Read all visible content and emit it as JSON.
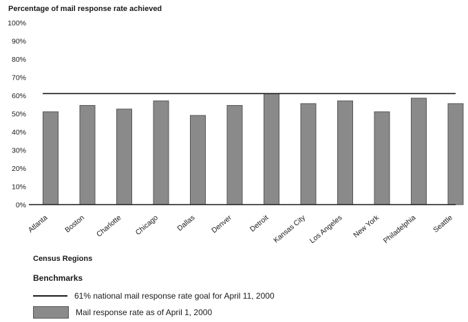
{
  "colors": {
    "bar": "#8a8a8a",
    "bar_edge": "#555555",
    "goal_line": "#1a1a1a",
    "axis": "#1a1a1a"
  },
  "chart_data": {
    "type": "bar",
    "ylabel": "Percentage of mail response rate achieved",
    "xlabel": "Census Regions",
    "ylim": [
      0,
      100
    ],
    "yticks": [
      "0%",
      "10%",
      "20%",
      "30%",
      "40%",
      "50%",
      "60%",
      "70%",
      "80%",
      "90%",
      "100%"
    ],
    "categories": [
      "Atlanta",
      "Boston",
      "Charlotte",
      "Chicago",
      "Dallas",
      "Denver",
      "Detroit",
      "Kansas City",
      "Los Angeles",
      "New York",
      "Philadelphia",
      "Seattle"
    ],
    "series": [
      {
        "name": "Mail response rate as of April 1, 2000",
        "values": [
          51,
          54.5,
          52.5,
          57,
          49,
          54.5,
          61,
          55.5,
          57,
          51,
          58.5,
          55.5
        ]
      }
    ],
    "reference_line": {
      "value": 61,
      "label": "61% national mail response rate goal for April 11, 2000"
    },
    "grid": false,
    "legend_title": "Benchmarks",
    "legend_placement": "bottom-left"
  }
}
